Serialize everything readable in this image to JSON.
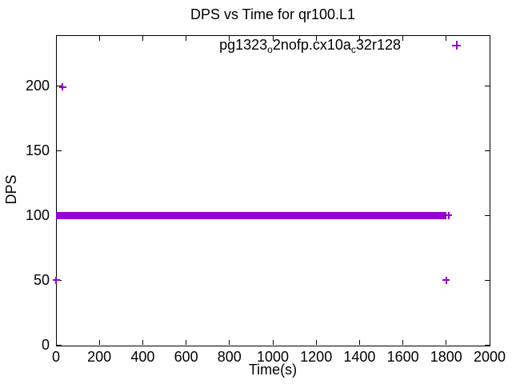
{
  "chart_data": {
    "type": "scatter",
    "title": "DPS vs Time for qr100.L1",
    "xlabel": "Time(s)",
    "ylabel": "DPS",
    "xlim": [
      0,
      2000
    ],
    "ylim": [
      0,
      239
    ],
    "x_ticks": [
      0,
      200,
      400,
      600,
      800,
      1000,
      1200,
      1400,
      1600,
      1800,
      2000
    ],
    "y_ticks": [
      0,
      50,
      100,
      150,
      200
    ],
    "grid": false,
    "border": "full box with mirrored inward ticks",
    "legend_position": "top-right-inside",
    "series": [
      {
        "name": "pg1323o2nofp.cx10ac32r128",
        "name_parts": [
          {
            "text": "pg1323",
            "sub": false
          },
          {
            "text": "o",
            "sub": true
          },
          {
            "text": "2nofp.cx10a",
            "sub": false
          },
          {
            "text": "c",
            "sub": true
          },
          {
            "text": "32r128",
            "sub": false
          }
        ],
        "color": "#9400d3",
        "marker": "plus",
        "band": {
          "y": 100,
          "x_start": 0,
          "x_end": 1800,
          "thickness_px": 9,
          "note": "densely overlapping + markers at DPS ~100 from t=0 to t~1800"
        },
        "points": [
          [
            0,
            50
          ],
          [
            30,
            199
          ],
          [
            1810,
            100
          ],
          [
            1800,
            50
          ]
        ]
      }
    ]
  }
}
